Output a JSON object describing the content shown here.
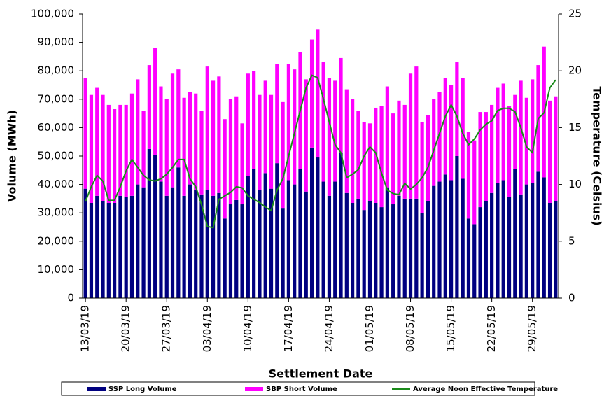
{
  "chart_data": {
    "type": "bar",
    "stacked": true,
    "x_label": "Settlement Date",
    "y_label": "Volume (MWh)",
    "y2_label": "Temperature (Celsius)",
    "categories": [
      "13/03/19",
      null,
      null,
      null,
      null,
      null,
      null,
      "20/03/19",
      null,
      null,
      null,
      null,
      null,
      null,
      "27/03/19",
      null,
      null,
      null,
      null,
      null,
      null,
      "03/04/19",
      null,
      null,
      null,
      null,
      null,
      null,
      "10/04/19",
      null,
      null,
      null,
      null,
      null,
      null,
      "17/04/19",
      null,
      null,
      null,
      null,
      null,
      null,
      "24/04/19",
      null,
      null,
      null,
      null,
      null,
      null,
      "01/05/19",
      null,
      null,
      null,
      null,
      null,
      null,
      "08/05/19",
      null,
      null,
      null,
      null,
      null,
      null,
      "15/05/19",
      null,
      null,
      null,
      null,
      null,
      null,
      "22/05/19",
      null,
      null,
      null,
      null,
      null,
      null,
      "29/05/19",
      null,
      null,
      null,
      null
    ],
    "series": [
      {
        "name": "SSP Long Volume",
        "color": "#000080",
        "values": [
          38500,
          33500,
          36000,
          34000,
          33500,
          33500,
          36000,
          35500,
          36000,
          40000,
          39000,
          52500,
          50500,
          41000,
          36000,
          39000,
          46000,
          36000,
          40000,
          38000,
          36500,
          38000,
          36000,
          37000,
          28000,
          33000,
          34500,
          33000,
          43000,
          45500,
          38000,
          44000,
          38500,
          47500,
          31500,
          41500,
          40000,
          45500,
          37500,
          53000,
          49500,
          41000,
          36000,
          41000,
          51000,
          37000,
          33500,
          35000,
          31000,
          34000,
          33500,
          32000,
          39000,
          33000,
          36000,
          35000,
          35000,
          35000,
          30000,
          34000,
          39500,
          41000,
          43500,
          41500,
          50000,
          42000,
          28000,
          26000,
          32000,
          34000,
          37000,
          40500,
          41500,
          35500,
          45500,
          36500,
          40000,
          40500,
          44500,
          42500,
          33500,
          34000
        ]
      },
      {
        "name": "SBP Short Volume",
        "color": "#ff00ff",
        "values": [
          39000,
          38000,
          38000,
          37500,
          34500,
          33000,
          32000,
          32500,
          36000,
          37000,
          27000,
          29500,
          37500,
          33500,
          34000,
          40000,
          34500,
          34500,
          32500,
          34000,
          29500,
          43500,
          40500,
          41000,
          35000,
          37000,
          36500,
          28500,
          36000,
          34500,
          33500,
          32500,
          33000,
          35000,
          37500,
          41000,
          40500,
          41000,
          39500,
          38000,
          45000,
          42000,
          41500,
          35500,
          33500,
          36500,
          36500,
          31000,
          31000,
          27500,
          33500,
          35500,
          35500,
          32000,
          33500,
          33000,
          44000,
          46500,
          32000,
          30500,
          30500,
          31500,
          34000,
          33500,
          33000,
          35500,
          30500,
          29500,
          33500,
          31500,
          31000,
          33500,
          34000,
          32000,
          26000,
          40000,
          30500,
          36500,
          37500,
          46000,
          36000,
          37000
        ]
      },
      {
        "name": "Average Noon Effective Temperature",
        "color": "#1a8a1a",
        "type": "line",
        "axis": "y2",
        "values": [
          8.5,
          9.8,
          10.8,
          10.3,
          8.6,
          8.6,
          9.8,
          11.2,
          12.2,
          11.5,
          10.8,
          10.4,
          10.3,
          10.5,
          10.9,
          11.5,
          12.2,
          12.2,
          10.5,
          9.8,
          8.2,
          6.3,
          6.2,
          8.7,
          9.0,
          9.3,
          9.8,
          9.7,
          9.0,
          8.7,
          8.4,
          8.0,
          7.7,
          9.5,
          10.5,
          12.5,
          14.5,
          16.5,
          18.5,
          19.6,
          19.4,
          17.5,
          15.5,
          13.5,
          12.8,
          10.6,
          10.9,
          11.3,
          12.5,
          13.3,
          12.8,
          11.0,
          9.5,
          9.2,
          9.1,
          10.1,
          9.6,
          10.0,
          10.6,
          11.5,
          13.0,
          14.5,
          16.0,
          17.0,
          16.0,
          14.5,
          13.5,
          14.0,
          14.8,
          15.3,
          15.6,
          16.5,
          16.7,
          16.7,
          16.4,
          15.0,
          13.3,
          12.8,
          15.8,
          16.3,
          18.5,
          19.2
        ]
      }
    ],
    "ylim": [
      0,
      100000
    ],
    "yticks": [
      0,
      {
        "value": 10000,
        "label": "10,000"
      },
      {
        "value": 20000,
        "label": "20,000"
      },
      {
        "value": 30000,
        "label": "30,000"
      },
      {
        "value": 40000,
        "label": "40,000"
      },
      {
        "value": 50000,
        "label": "50,000"
      },
      {
        "value": 60000,
        "label": "60,000"
      },
      {
        "value": 70000,
        "label": "70,000"
      },
      {
        "value": 80000,
        "label": "80,000"
      },
      {
        "value": 90000,
        "label": "90,000"
      },
      {
        "value": 100000,
        "label": "100,000"
      }
    ],
    "y2lim": [
      0,
      25
    ],
    "y2ticks": [
      0,
      5,
      10,
      15,
      20,
      25
    ],
    "legend": "bottom"
  }
}
